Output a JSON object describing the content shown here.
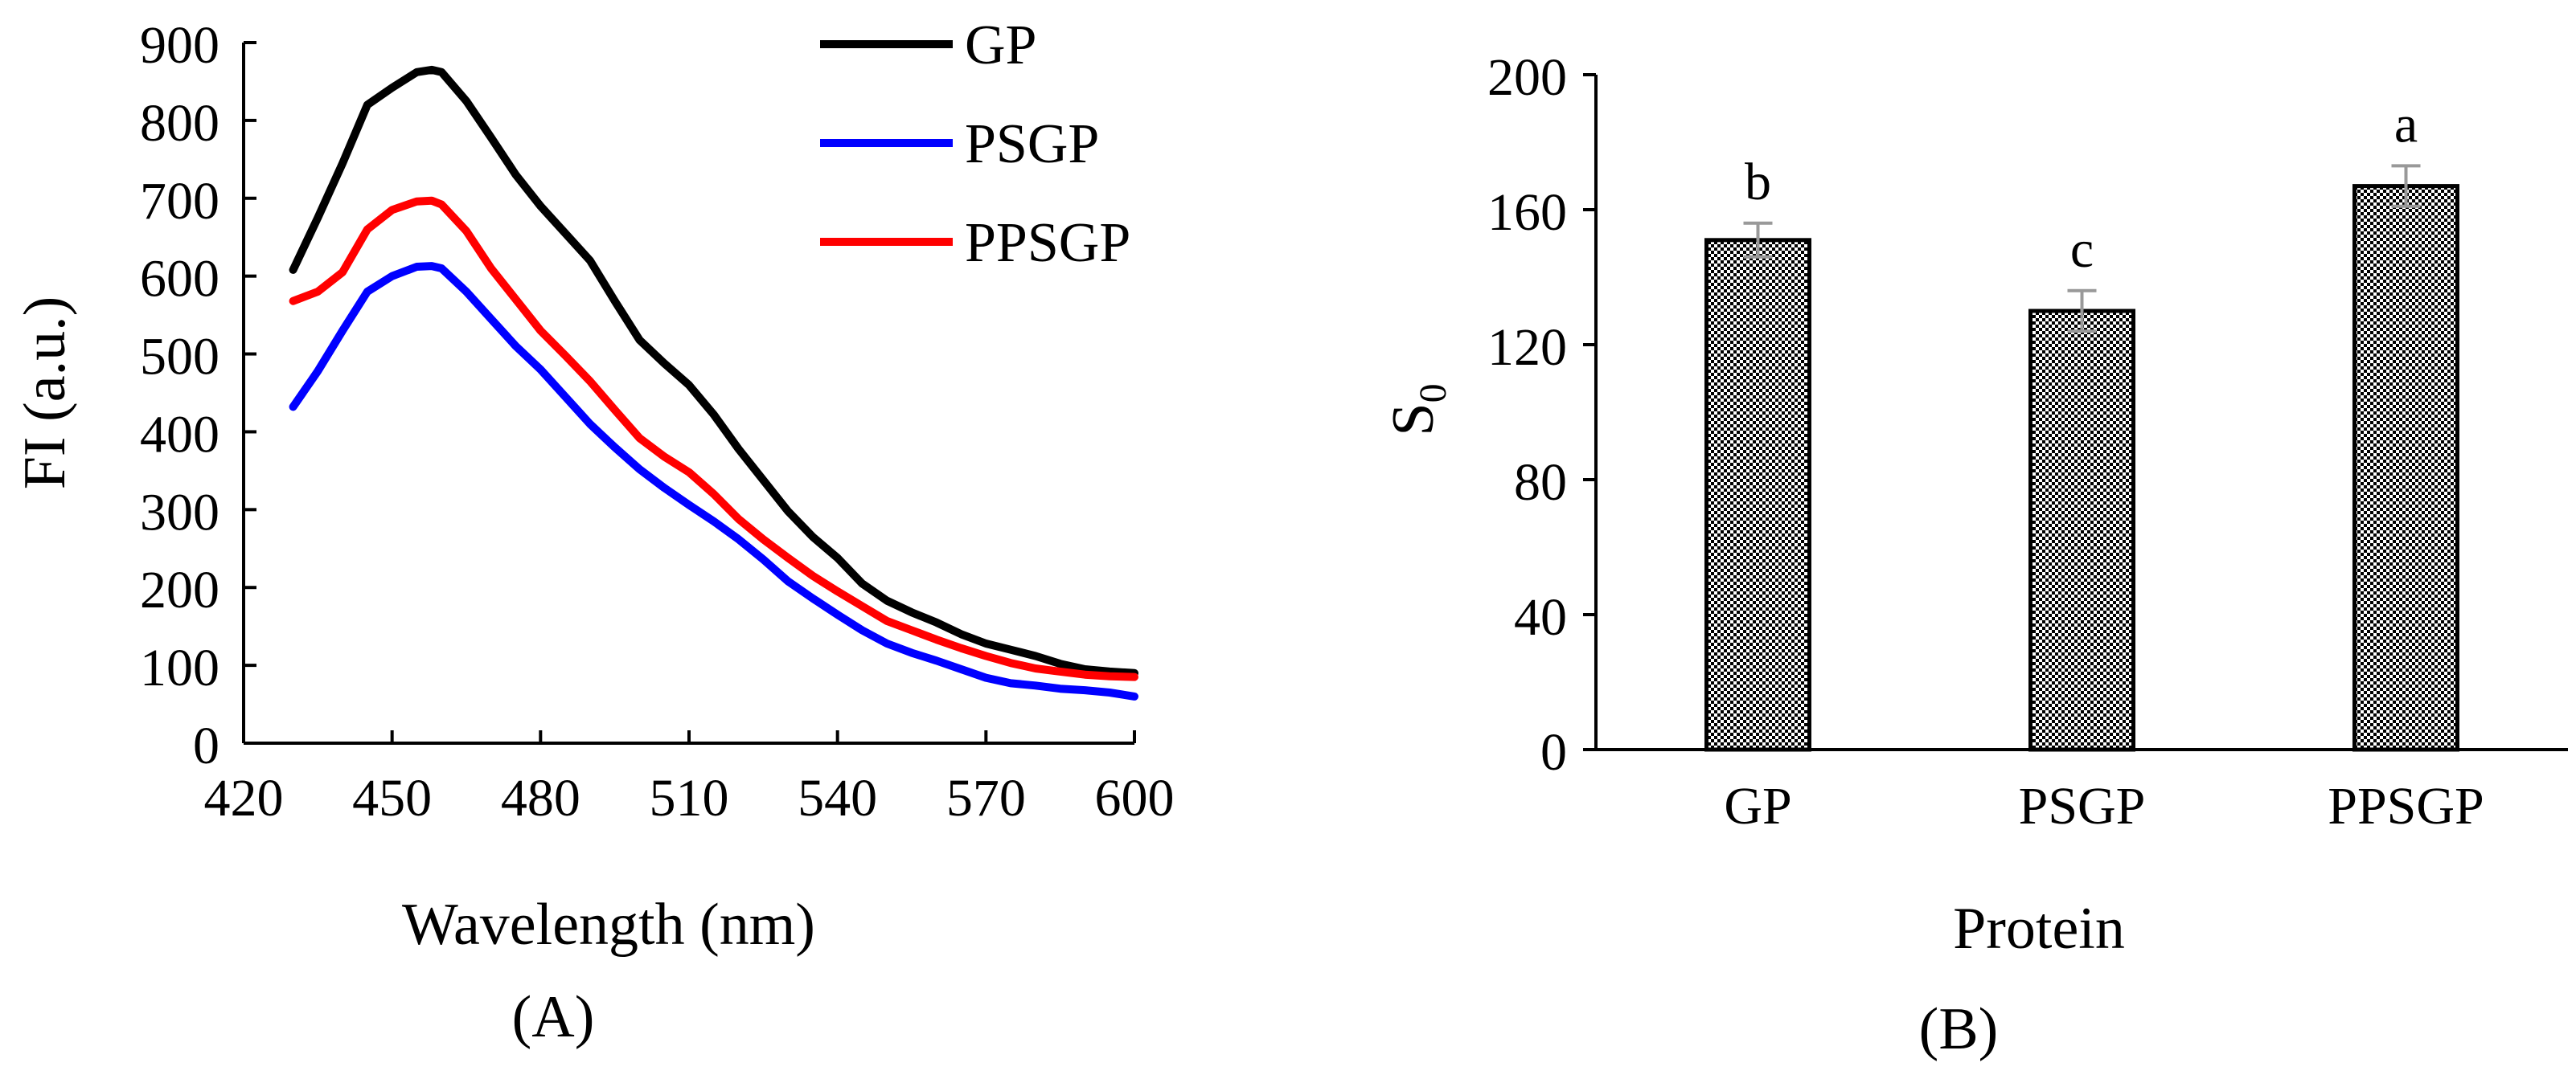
{
  "chart_data": [
    {
      "type": "line",
      "panel_label": "(A)",
      "xlabel": "Wavelength (nm)",
      "ylabel": "FI (a.u.)",
      "xlim": [
        420,
        600
      ],
      "ylim": [
        0,
        900
      ],
      "xticks": [
        420,
        450,
        480,
        510,
        540,
        570,
        600
      ],
      "yticks": [
        0,
        100,
        200,
        300,
        400,
        500,
        600,
        700,
        800,
        900
      ],
      "legend_position": "top-right",
      "x": [
        430,
        435,
        440,
        445,
        450,
        455,
        458,
        460,
        465,
        470,
        475,
        480,
        485,
        490,
        495,
        500,
        505,
        510,
        515,
        520,
        525,
        530,
        535,
        540,
        545,
        550,
        555,
        560,
        565,
        570,
        575,
        580,
        585,
        590,
        595,
        600
      ],
      "series": [
        {
          "name": "GP",
          "color": "#000000",
          "values": [
            608,
            675,
            745,
            820,
            842,
            862,
            865,
            862,
            825,
            778,
            730,
            690,
            655,
            620,
            568,
            518,
            488,
            460,
            422,
            378,
            338,
            298,
            265,
            238,
            205,
            183,
            168,
            155,
            140,
            128,
            120,
            112,
            102,
            95,
            92,
            90
          ]
        },
        {
          "name": "PSGP",
          "color": "#0000ff",
          "values": [
            432,
            478,
            530,
            580,
            600,
            612,
            613,
            610,
            580,
            545,
            510,
            480,
            445,
            410,
            380,
            352,
            328,
            306,
            285,
            262,
            236,
            208,
            186,
            165,
            145,
            128,
            116,
            106,
            95,
            84,
            77,
            74,
            70,
            68,
            65,
            60
          ]
        },
        {
          "name": "PPSGP",
          "color": "#ff0000",
          "values": [
            568,
            580,
            605,
            660,
            685,
            696,
            697,
            692,
            658,
            610,
            570,
            530,
            498,
            465,
            428,
            392,
            368,
            348,
            320,
            288,
            262,
            238,
            215,
            195,
            176,
            157,
            145,
            133,
            122,
            112,
            103,
            96,
            92,
            88,
            86,
            85
          ]
        }
      ]
    },
    {
      "type": "bar",
      "panel_label": "(B)",
      "xlabel": "Protein",
      "ylabel_main": "S",
      "ylabel_sub": "0",
      "ylim": [
        0,
        200
      ],
      "yticks": [
        0,
        40,
        80,
        120,
        160,
        200
      ],
      "categories": [
        "GP",
        "PSGP",
        "PPSGP"
      ],
      "values": [
        151,
        130,
        167
      ],
      "errors": [
        5,
        6,
        6
      ],
      "significance": [
        "b",
        "c",
        "a"
      ],
      "bar_pattern": "checkered",
      "legend_position": "none"
    }
  ],
  "colors": {
    "axis": "#000000",
    "error_bar": "#999999",
    "bar_fill_dark": "#000000",
    "bar_fill_light": "#ffffff"
  }
}
